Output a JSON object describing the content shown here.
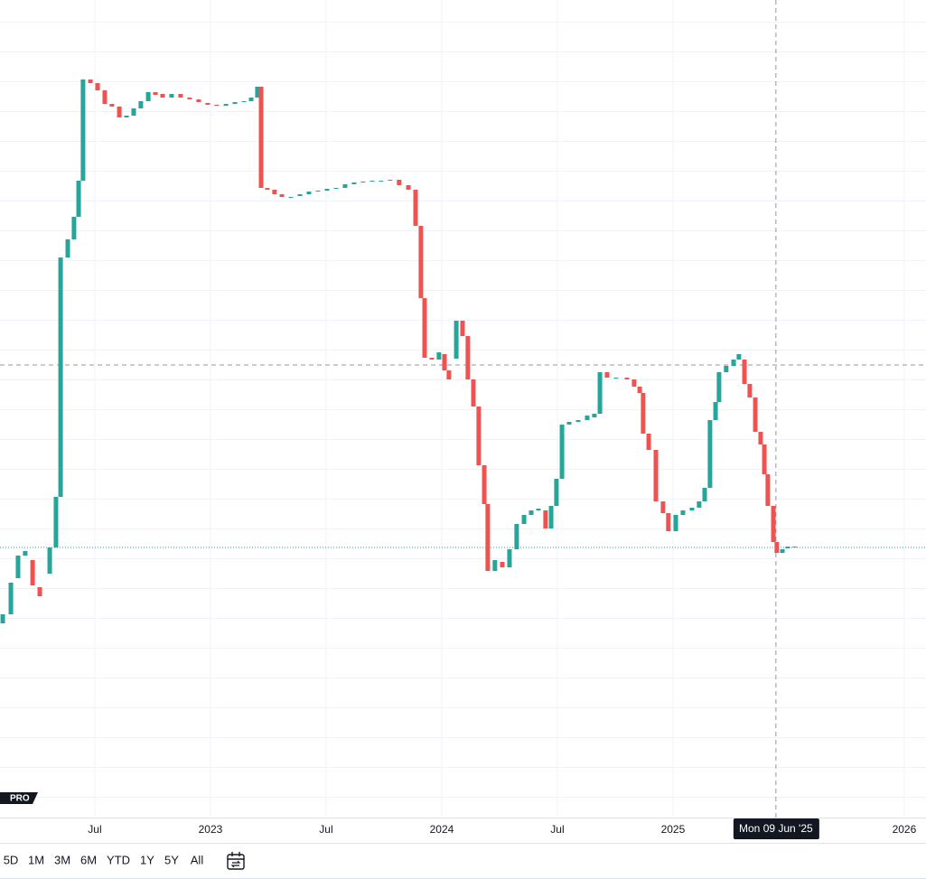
{
  "chart_data": {
    "type": "candlestick",
    "x": [
      2022.102,
      2022.137,
      2022.168,
      2022.199,
      2022.231,
      2022.262,
      2022.305,
      2022.332,
      2022.352,
      2022.383,
      2022.41,
      2022.43,
      2022.449,
      2022.481,
      2022.512,
      2022.543,
      2022.574,
      2022.606,
      2022.637,
      2022.668,
      2022.699,
      2022.731,
      2022.762,
      2022.793,
      2022.832,
      2022.871,
      2022.91,
      2022.949,
      2022.988,
      2023.027,
      2023.067,
      2023.106,
      2023.145,
      2023.176,
      2023.203,
      2023.219,
      2023.246,
      2023.277,
      2023.309,
      2023.348,
      2023.387,
      2023.426,
      2023.465,
      2023.504,
      2023.543,
      2023.582,
      2023.621,
      2023.66,
      2023.699,
      2023.738,
      2023.777,
      2023.816,
      2023.856,
      2023.887,
      2023.91,
      2023.926,
      2023.957,
      2023.988,
      2024.012,
      2024.031,
      2024.063,
      2024.09,
      2024.113,
      2024.137,
      2024.16,
      2024.184,
      2024.199,
      2024.23,
      2024.262,
      2024.293,
      2024.324,
      2024.356,
      2024.387,
      2024.418,
      2024.449,
      2024.473,
      2024.496,
      2024.52,
      2024.551,
      2024.59,
      2024.629,
      2024.66,
      2024.684,
      2024.715,
      2024.754,
      2024.801,
      2024.832,
      2024.856,
      2024.871,
      2024.895,
      2024.926,
      2024.957,
      2024.98,
      2025.012,
      2025.043,
      2025.082,
      2025.113,
      2025.137,
      2025.16,
      2025.184,
      2025.199,
      2025.23,
      2025.262,
      2025.285,
      2025.309,
      2025.332,
      2025.356,
      2025.379,
      2025.395,
      2025.41,
      2025.434,
      2025.449,
      2025.473,
      2025.496,
      2025.527
    ],
    "open": [
      215,
      225,
      265,
      290,
      285,
      255,
      270,
      299,
      355,
      620,
      640,
      665,
      705,
      817,
      813,
      805,
      790,
      787,
      775,
      777,
      785,
      793,
      803,
      801,
      797,
      801,
      797,
      795,
      791,
      789,
      788,
      790,
      792,
      793,
      797,
      809,
      697,
      695,
      690,
      687,
      688,
      690,
      693,
      694,
      696,
      697,
      701,
      703,
      704,
      705,
      705,
      706,
      700,
      695,
      655,
      575,
      509,
      507,
      513,
      495,
      508,
      550,
      533,
      485,
      455,
      390,
      347,
      273,
      283,
      277,
      297,
      325,
      335,
      340,
      340,
      320,
      345,
      375,
      435,
      438,
      440,
      443,
      447,
      493,
      487,
      487,
      485,
      477,
      470,
      425,
      407,
      350,
      337,
      317,
      335,
      340,
      343,
      350,
      365,
      440,
      460,
      493,
      500,
      507,
      507,
      480,
      465,
      427,
      413,
      380,
      345,
      305,
      293,
      298,
      300
    ],
    "close": [
      225,
      260,
      290,
      295,
      257,
      245,
      299,
      355,
      620,
      640,
      665,
      705,
      817,
      813,
      805,
      790,
      787,
      775,
      777,
      785,
      793,
      803,
      800,
      797,
      801,
      797,
      795,
      792,
      789,
      788,
      790,
      792,
      793,
      797,
      809,
      697,
      695,
      690,
      687,
      687,
      690,
      693,
      694,
      696,
      697,
      701,
      703,
      704,
      705,
      705,
      706,
      700,
      695,
      655,
      575,
      509,
      507,
      515,
      495,
      485,
      550,
      533,
      485,
      455,
      390,
      347,
      273,
      285,
      277,
      297,
      325,
      335,
      340,
      342,
      320,
      345,
      375,
      435,
      438,
      440,
      445,
      447,
      493,
      487,
      487,
      485,
      477,
      470,
      425,
      407,
      350,
      337,
      317,
      335,
      340,
      343,
      350,
      365,
      440,
      460,
      493,
      500,
      507,
      513,
      480,
      465,
      427,
      413,
      380,
      345,
      305,
      293,
      297,
      300,
      299
    ],
    "xlim": [
      2022.09,
      2026.094
    ],
    "ylim": [
      0,
      905
    ],
    "xticks": [
      {
        "value": 2022.5,
        "label": "Jul"
      },
      2023,
      {
        "value": 2023.5,
        "label": "Jul"
      },
      2024,
      {
        "value": 2024.5,
        "label": "Jul"
      },
      2025,
      2026
    ],
    "up_color": "#26a69a",
    "down_color": "#ef5350",
    "grid": true,
    "crosshair": {
      "x": 2025.445,
      "y": 501,
      "label": "Mon 09 Jun '25"
    },
    "last_price": 299
  },
  "badge": "PRO",
  "toolbar": {
    "ranges": [
      "5D",
      "1M",
      "3M",
      "6M",
      "YTD",
      "1Y",
      "5Y",
      "All"
    ]
  }
}
